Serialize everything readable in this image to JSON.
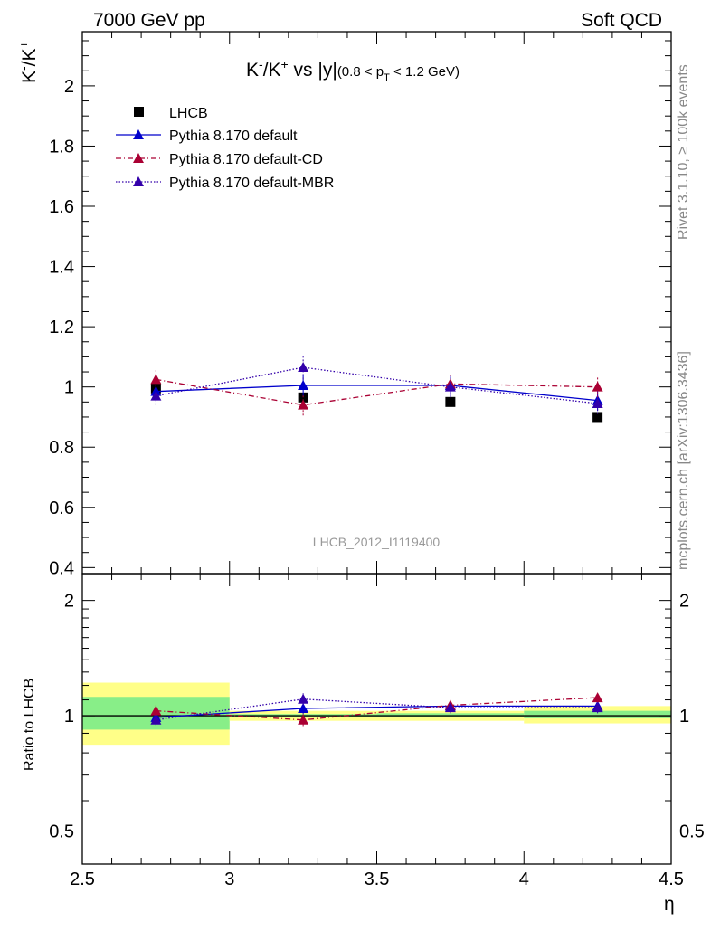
{
  "header": {
    "left": "7000 GeV pp",
    "right": "Soft QCD"
  },
  "side_labels": {
    "rivet": "Rivet 3.1.10, ≥ 100k events",
    "mcplots": "mcplots.cern.ch [arXiv:1306.3436]"
  },
  "watermark": "LHCB_2012_I1119400",
  "colors": {
    "data": "#000000",
    "default": "#0000cc",
    "cd": "#aa0033",
    "mbr": "#3300aa",
    "band_outer": "#ffff88",
    "band_inner": "#88ee88"
  },
  "chart_data": [
    {
      "type": "scatter",
      "title": {
        "main": "K",
        "sup1": "-",
        "mid": "/K",
        "sup2": "+",
        "rest": " vs |y|",
        "small": "(0.8 < p",
        "sub": "T",
        "small_end": " < 1.2 GeV)"
      },
      "ylabel": {
        "base1": "K",
        "sup1": "-",
        "base2": "/K",
        "sup2": "+"
      },
      "xlim": [
        2.5,
        4.5
      ],
      "ylim": [
        0.38,
        2.18
      ],
      "yticks": [
        "0.4",
        "0.6",
        "0.8",
        "1",
        "1.2",
        "1.4",
        "1.6",
        "1.8",
        "2"
      ],
      "x": [
        2.75,
        3.25,
        3.75,
        4.25
      ],
      "series": [
        {
          "name": "LHCB",
          "style": "data",
          "values": [
            0.995,
            0.965,
            0.95,
            0.9
          ]
        },
        {
          "name": "Pythia 8.170 default",
          "style": "default",
          "values": [
            0.985,
            1.005,
            1.005,
            0.955
          ],
          "err": [
            0.02,
            0.035,
            0.035,
            0.035
          ]
        },
        {
          "name": "Pythia 8.170 default-CD",
          "style": "cd",
          "values": [
            1.025,
            0.94,
            1.01,
            1.0
          ],
          "err": [
            0.035,
            0.035,
            0.035,
            0.035
          ]
        },
        {
          "name": "Pythia 8.170 default-MBR",
          "style": "mbr",
          "values": [
            0.97,
            1.065,
            1.0,
            0.945
          ],
          "err": [
            0.03,
            0.04,
            0.035,
            0.035
          ]
        }
      ]
    },
    {
      "type": "scatter",
      "ylabel": "Ratio to LHCB",
      "xlabel": "η",
      "xlim": [
        2.5,
        4.5
      ],
      "ylim": [
        0.41,
        2.35
      ],
      "log_y": true,
      "yticks": [
        "0.5",
        "1",
        "2"
      ],
      "xticks": [
        "2.5",
        "3",
        "3.5",
        "4",
        "4.5"
      ],
      "bands": [
        {
          "x": [
            2.5,
            3.0
          ],
          "outer": [
            0.84,
            1.22
          ],
          "inner": [
            0.92,
            1.12
          ]
        },
        {
          "x": [
            3.0,
            3.5
          ],
          "outer": [
            0.97,
            1.03
          ],
          "inner": [
            0.99,
            1.01
          ]
        },
        {
          "x": [
            3.5,
            4.0
          ],
          "outer": [
            0.97,
            1.03
          ],
          "inner": [
            0.99,
            1.015
          ]
        },
        {
          "x": [
            4.0,
            4.5
          ],
          "outer": [
            0.955,
            1.06
          ],
          "inner": [
            0.985,
            1.03
          ]
        }
      ],
      "x": [
        2.75,
        3.25,
        3.75,
        4.25
      ],
      "series": [
        {
          "name": "Pythia 8.170 default",
          "style": "default",
          "values": [
            0.99,
            1.045,
            1.06,
            1.06
          ],
          "err": [
            0.02,
            0.035,
            0.035,
            0.035
          ]
        },
        {
          "name": "Pythia 8.170 default-CD",
          "style": "cd",
          "values": [
            1.03,
            0.975,
            1.065,
            1.115
          ],
          "err": [
            0.035,
            0.035,
            0.035,
            0.035
          ]
        },
        {
          "name": "Pythia 8.170 default-MBR",
          "style": "mbr",
          "values": [
            0.975,
            1.105,
            1.05,
            1.05
          ],
          "err": [
            0.03,
            0.04,
            0.035,
            0.035
          ]
        }
      ]
    }
  ]
}
